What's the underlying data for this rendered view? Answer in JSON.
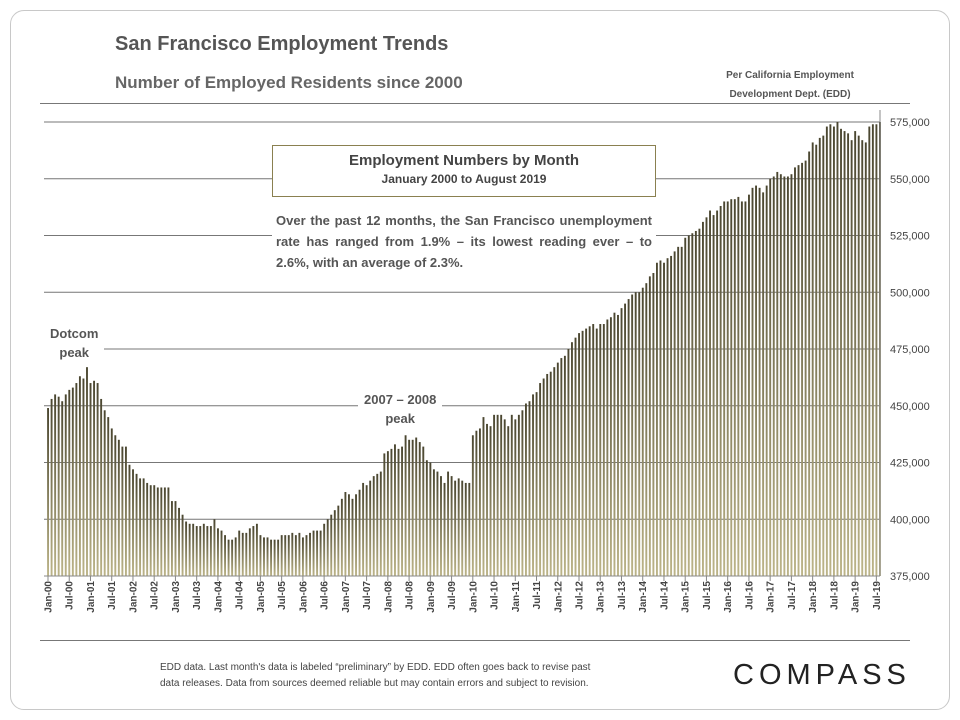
{
  "header": {
    "title": "San Francisco Employment Trends",
    "subtitle": "Number of Employed Residents since 2000",
    "source_line1": "Per California Employment",
    "source_line2": "Development Dept. (EDD)"
  },
  "annotations": {
    "box_title": "Employment Numbers by Month",
    "box_subtitle": "January 2000 to August 2019",
    "paragraph": "Over the past 12 months, the San Francisco unemployment rate has ranged from 1.9% – its lowest reading ever – to 2.6%, with an average of 2.3%.",
    "dotcom_line1": "Dotcom",
    "dotcom_line2": "peak",
    "peak2008_line1": "2007 – 2008",
    "peak2008_line2": "peak"
  },
  "footer": {
    "line1": "EDD data. Last month's data is labeled “preliminary” by EDD. EDD often goes back to revise past",
    "line2": "data releases. Data from sources deemed reliable but may contain errors and subject to revision.",
    "logo": "COMPASS"
  },
  "colors": {
    "bar_top": "#4a4630",
    "bar_bottom": "#bcb488",
    "grid": "#777777"
  },
  "chart_data": {
    "type": "bar",
    "title": "San Francisco Employment Trends",
    "subtitle": "Number of Employed Residents since 2000",
    "start_month": "Jan-00",
    "end_month": "Aug-19",
    "ylim": [
      375000,
      575000
    ],
    "yticks": [
      "375,000",
      "400,000",
      "425,000",
      "450,000",
      "475,000",
      "500,000",
      "525,000",
      "550,000",
      "575,000"
    ],
    "xticks": [
      "Jan-00",
      "Jul-00",
      "Jan-01",
      "Jul-01",
      "Jan-02",
      "Jul-02",
      "Jan-03",
      "Jul-03",
      "Jan-04",
      "Jul-04",
      "Jan-05",
      "Jul-05",
      "Jan-06",
      "Jul-06",
      "Jan-07",
      "Jul-07",
      "Jan-08",
      "Jul-08",
      "Jan-09",
      "Jul-09",
      "Jan-10",
      "Jul-10",
      "Jan-11",
      "Jul-11",
      "Jan-12",
      "Jul-12",
      "Jan-13",
      "Jul-13",
      "Jan-14",
      "Jul-14",
      "Jan-15",
      "Jul-15",
      "Jan-16",
      "Jul-16",
      "Jan-17",
      "Jul-17",
      "Jan-18",
      "Jul-18",
      "Jan-19",
      "Jul-19"
    ],
    "grid": true,
    "values": [
      449000,
      453000,
      455000,
      454000,
      452000,
      455000,
      457000,
      458000,
      460000,
      463000,
      462000,
      467000,
      460000,
      461000,
      460000,
      453000,
      448000,
      445000,
      440000,
      437000,
      435000,
      432000,
      432000,
      424000,
      422000,
      420000,
      418000,
      418000,
      416000,
      415000,
      415000,
      414000,
      414000,
      414000,
      414000,
      408000,
      408000,
      405000,
      402000,
      399000,
      398000,
      398000,
      397000,
      397000,
      398000,
      397000,
      397000,
      400000,
      396000,
      395000,
      393000,
      391000,
      391000,
      392000,
      395000,
      394000,
      394000,
      396000,
      397000,
      398000,
      393000,
      392000,
      392000,
      391000,
      391000,
      391000,
      393000,
      393000,
      393000,
      394000,
      393000,
      394000,
      392000,
      393000,
      394000,
      395000,
      395000,
      395000,
      398000,
      400000,
      402000,
      404000,
      406000,
      409000,
      412000,
      411000,
      409000,
      411000,
      413000,
      416000,
      415000,
      417000,
      419000,
      420000,
      421000,
      429000,
      430000,
      431000,
      433000,
      431000,
      432000,
      437000,
      435000,
      435000,
      436000,
      434000,
      432000,
      426000,
      425000,
      422000,
      421000,
      419000,
      416000,
      421000,
      419000,
      417000,
      418000,
      417000,
      416000,
      416000,
      437000,
      439000,
      440000,
      445000,
      442000,
      441000,
      446000,
      446000,
      446000,
      444000,
      441000,
      446000,
      444000,
      446000,
      448000,
      451000,
      452000,
      455000,
      456000,
      460000,
      462000,
      464000,
      465000,
      467000,
      469000,
      471000,
      472000,
      475000,
      478000,
      480000,
      482000,
      483000,
      484000,
      485000,
      486000,
      484000,
      486000,
      486000,
      488000,
      489000,
      491000,
      490000,
      493000,
      495000,
      497000,
      499000,
      500000,
      500000,
      502000,
      504000,
      507000,
      510000,
      513000,
      514000,
      513000,
      515000,
      516000,
      518000,
      520000,
      520000,
      524000,
      525000,
      526000,
      527000,
      528000,
      531000,
      533000,
      536000,
      534000,
      536000,
      538000,
      540000,
      540000,
      541000,
      541000,
      542000,
      540000,
      540000,
      543000,
      546000,
      547000,
      546000,
      544000,
      547000,
      550000,
      551000,
      553000,
      552000,
      551000,
      551000,
      552000,
      555000,
      556000,
      557000,
      558000,
      562000,
      566000,
      565000,
      568000,
      569000,
      573000,
      574000,
      573000,
      575000,
      572000,
      571000,
      570000,
      567000,
      571000,
      569000,
      567000,
      566000,
      573000,
      574000,
      574000,
      575000
    ]
  }
}
